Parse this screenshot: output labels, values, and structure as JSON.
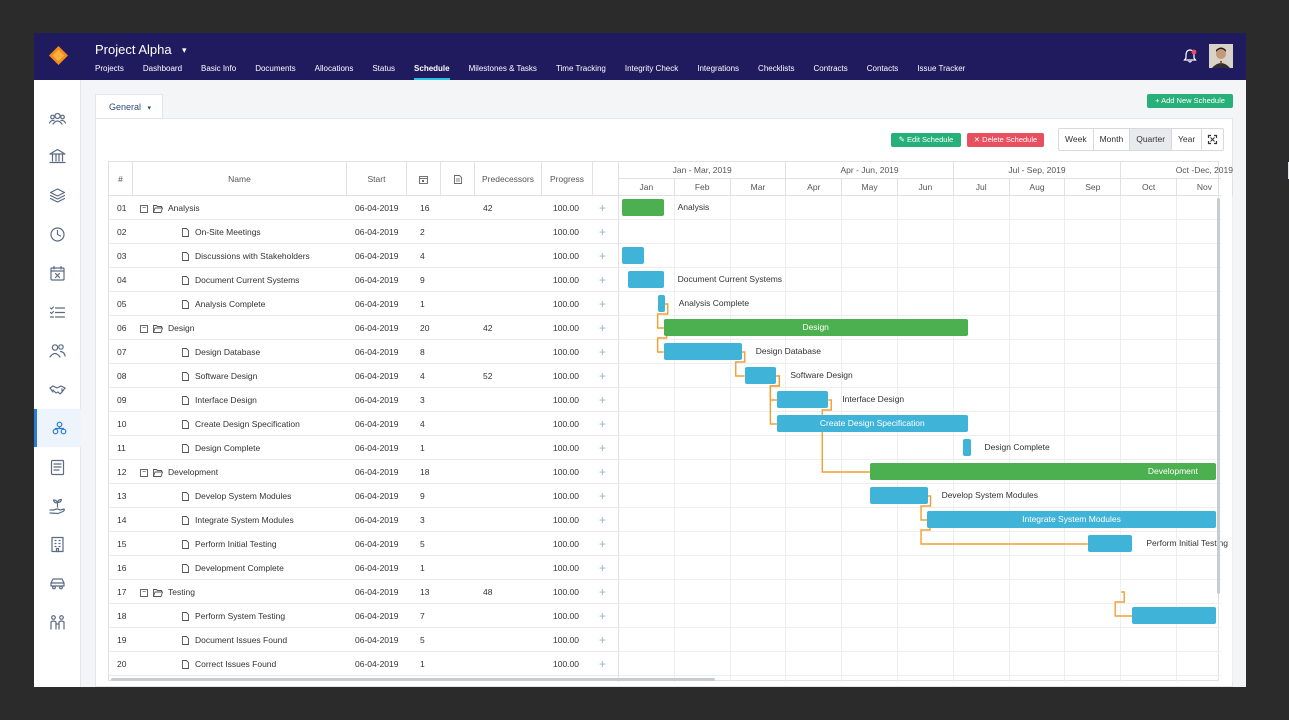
{
  "header": {
    "project_title": "Project Alpha",
    "caret": "▾",
    "nav_tabs": [
      {
        "label": "Projects"
      },
      {
        "label": "Dashboard"
      },
      {
        "label": "Basic Info"
      },
      {
        "label": "Documents"
      },
      {
        "label": "Allocations"
      },
      {
        "label": "Status"
      },
      {
        "label": "Schedule",
        "active": true
      },
      {
        "label": "Milestones & Tasks"
      },
      {
        "label": "Time Tracking"
      },
      {
        "label": "Integrity Check"
      },
      {
        "label": "Integrations"
      },
      {
        "label": "Checklists"
      },
      {
        "label": "Contracts"
      },
      {
        "label": "Contacts"
      },
      {
        "label": "Issue Tracker"
      }
    ],
    "notification_icon": "bell-icon",
    "notification_dot_color": "#e9505f",
    "nav_active_color": "#2fc0e6",
    "bar_color": "#1f1b5e"
  },
  "sidebar": {
    "items": [
      {
        "icon": "team-icon"
      },
      {
        "icon": "bank-icon"
      },
      {
        "icon": "layers-icon"
      },
      {
        "icon": "clock-icon"
      },
      {
        "icon": "calendar-x-icon"
      },
      {
        "icon": "checklist-icon"
      },
      {
        "icon": "users-icon"
      },
      {
        "icon": "handshake-icon"
      },
      {
        "icon": "hierarchy-icon",
        "active": true
      },
      {
        "icon": "ledger-icon"
      },
      {
        "icon": "plant-hand-icon"
      },
      {
        "icon": "building-icon"
      },
      {
        "icon": "car-icon"
      },
      {
        "icon": "people-group-icon"
      }
    ]
  },
  "schedule": {
    "tab_label": "General",
    "tab_caret": "▾",
    "add_button": "+ Add New Schedule",
    "edit_button": "Edit Schedule",
    "delete_button": "Delete Schedule",
    "zoom_options": [
      "Week",
      "Month",
      "Quarter",
      "Year"
    ],
    "zoom_selected": "Quarter",
    "fullscreen_icon": "fullscreen-icon",
    "columns": {
      "num": "#",
      "name": "Name",
      "start": "Start",
      "duration_icon": "calendar-icon",
      "notes_icon": "document-icon",
      "predecessors": "Predecessors",
      "progress": "Progress"
    },
    "add_task_glyph": "+",
    "collapse_glyph": "−",
    "tasks": [
      {
        "num": "01",
        "name": "Analysis",
        "summary": true,
        "start": "06-04-2019",
        "duration": "16",
        "predecessors": "42",
        "progress": "100.00"
      },
      {
        "num": "02",
        "name": "On-Site Meetings",
        "start": "06-04-2019",
        "duration": "2",
        "predecessors": "",
        "progress": "100.00"
      },
      {
        "num": "03",
        "name": "Discussions with Stakeholders",
        "start": "06-04-2019",
        "duration": "4",
        "predecessors": "",
        "progress": "100.00"
      },
      {
        "num": "04",
        "name": "Document Current Systems",
        "start": "06-04-2019",
        "duration": "9",
        "predecessors": "",
        "progress": "100.00"
      },
      {
        "num": "05",
        "name": "Analysis Complete",
        "start": "06-04-2019",
        "duration": "1",
        "predecessors": "",
        "progress": "100.00"
      },
      {
        "num": "06",
        "name": "Design",
        "summary": true,
        "start": "06-04-2019",
        "duration": "20",
        "predecessors": "42",
        "progress": "100.00"
      },
      {
        "num": "07",
        "name": "Design Database",
        "start": "06-04-2019",
        "duration": "8",
        "predecessors": "",
        "progress": "100.00"
      },
      {
        "num": "08",
        "name": "Software Design",
        "start": "06-04-2019",
        "duration": "4",
        "predecessors": "52",
        "progress": "100.00"
      },
      {
        "num": "09",
        "name": "Interface Design",
        "start": "06-04-2019",
        "duration": "3",
        "predecessors": "",
        "progress": "100.00"
      },
      {
        "num": "10",
        "name": "Create Design Specification",
        "start": "06-04-2019",
        "duration": "4",
        "predecessors": "",
        "progress": "100.00"
      },
      {
        "num": "11",
        "name": "Design Complete",
        "start": "06-04-2019",
        "duration": "1",
        "predecessors": "",
        "progress": "100.00"
      },
      {
        "num": "12",
        "name": "Development",
        "summary": true,
        "start": "06-04-2019",
        "duration": "18",
        "predecessors": "",
        "progress": "100.00"
      },
      {
        "num": "13",
        "name": "Develop System Modules",
        "start": "06-04-2019",
        "duration": "9",
        "predecessors": "",
        "progress": "100.00"
      },
      {
        "num": "14",
        "name": "Integrate System Modules",
        "start": "06-04-2019",
        "duration": "3",
        "predecessors": "",
        "progress": "100.00"
      },
      {
        "num": "15",
        "name": "Perform Initial Testing",
        "start": "06-04-2019",
        "duration": "5",
        "predecessors": "",
        "progress": "100.00"
      },
      {
        "num": "16",
        "name": "Development Complete",
        "start": "06-04-2019",
        "duration": "1",
        "predecessors": "",
        "progress": "100.00"
      },
      {
        "num": "17",
        "name": "Testing",
        "summary": true,
        "start": "06-04-2019",
        "duration": "13",
        "predecessors": "48",
        "progress": "100.00"
      },
      {
        "num": "18",
        "name": "Perform System Testing",
        "start": "06-04-2019",
        "duration": "7",
        "predecessors": "",
        "progress": "100.00"
      },
      {
        "num": "19",
        "name": "Document Issues Found",
        "start": "06-04-2019",
        "duration": "5",
        "predecessors": "",
        "progress": "100.00"
      },
      {
        "num": "20",
        "name": "Correct Issues Found",
        "start": "06-04-2019",
        "duration": "1",
        "predecessors": "",
        "progress": "100.00"
      }
    ],
    "timeline": {
      "quarters": [
        "Jan - Mar, 2019",
        "Apr - Jun, 2019",
        "Jul - Sep, 2019",
        "Oct -Dec, 2019"
      ],
      "months": [
        "Jan",
        "Feb",
        "Mar",
        "Apr",
        "May",
        "Jun",
        "Jul",
        "Aug",
        "Sep",
        "Oct",
        "Nov"
      ]
    },
    "bars": [
      {
        "row": 0,
        "label": "Analysis",
        "start_month": 0.05,
        "end_month": 0.8,
        "kind": "summary",
        "label_inside": false
      },
      {
        "row": 2,
        "label": "",
        "start_month": 0.05,
        "end_month": 0.45,
        "kind": "task",
        "label_inside": false
      },
      {
        "row": 3,
        "label": "Document Current Systems",
        "start_month": 0.17,
        "end_month": 0.8,
        "kind": "task",
        "label_inside": false
      },
      {
        "row": 4,
        "label": "Analysis Complete",
        "start_month": 0.7,
        "end_month": 0.82,
        "kind": "task",
        "label_inside": false
      },
      {
        "row": 5,
        "label": "Design",
        "start_month": 0.8,
        "end_month": 6.25,
        "kind": "summary",
        "label_inside": true
      },
      {
        "row": 6,
        "label": "Design Database",
        "start_month": 0.8,
        "end_month": 2.2,
        "kind": "task",
        "label_inside": false
      },
      {
        "row": 7,
        "label": "Software Design",
        "start_month": 2.25,
        "end_month": 2.82,
        "kind": "task",
        "label_inside": false
      },
      {
        "row": 8,
        "label": "Interface Design",
        "start_month": 2.83,
        "end_month": 3.75,
        "kind": "task",
        "label_inside": false
      },
      {
        "row": 9,
        "label": "Create Design Specification",
        "start_month": 2.83,
        "end_month": 6.25,
        "kind": "task",
        "label_inside": true
      },
      {
        "row": 10,
        "label": "Design Complete",
        "start_month": 6.17,
        "end_month": 6.3,
        "kind": "task",
        "label_inside": false
      },
      {
        "row": 11,
        "label": "Development",
        "start_month": 4.5,
        "end_month": 10.7,
        "kind": "summary",
        "label_inside": true,
        "label_align": "right"
      },
      {
        "row": 12,
        "label": "Develop System Modules",
        "start_month": 4.5,
        "end_month": 5.53,
        "kind": "task",
        "label_inside": false
      },
      {
        "row": 13,
        "label": "Integrate System Modules",
        "start_month": 5.52,
        "end_month": 10.7,
        "kind": "task",
        "label_inside": true
      },
      {
        "row": 14,
        "label": "Perform Initial Testing",
        "start_month": 8.4,
        "end_month": 9.2,
        "kind": "task",
        "label_inside": false
      },
      {
        "row": 17,
        "label": "",
        "start_month": 9.2,
        "end_month": 10.7,
        "kind": "task",
        "label_inside": false
      }
    ],
    "links": [
      {
        "from_row": 4,
        "to_row": 5,
        "from_month": 0.82,
        "to_month": 0.8
      },
      {
        "from_row": 5,
        "to_row": 6,
        "from_month": 0.8,
        "to_month": 0.8
      },
      {
        "from_row": 6,
        "to_row": 7,
        "from_month": 2.2,
        "to_month": 2.25
      },
      {
        "from_row": 7,
        "to_row": 8,
        "from_month": 2.82,
        "to_month": 2.83
      },
      {
        "from_row": 7,
        "to_row": 9,
        "from_month": 2.82,
        "to_month": 2.83
      },
      {
        "from_row": 8,
        "to_row": 11,
        "from_month": 3.75,
        "to_month": 4.5
      },
      {
        "from_row": 12,
        "to_row": 13,
        "from_month": 5.53,
        "to_month": 5.52
      },
      {
        "from_row": 13,
        "to_row": 14,
        "from_month": 5.52,
        "to_month": 8.4
      },
      {
        "from_row": 16,
        "to_row": 17,
        "from_month": 9.0,
        "to_month": 9.2
      }
    ],
    "colors": {
      "summary_bar": "#4caf50",
      "task_bar": "#3fb4d8",
      "link": "#f0a030",
      "add_button": "#28b07b",
      "delete_button": "#e9505f"
    }
  }
}
